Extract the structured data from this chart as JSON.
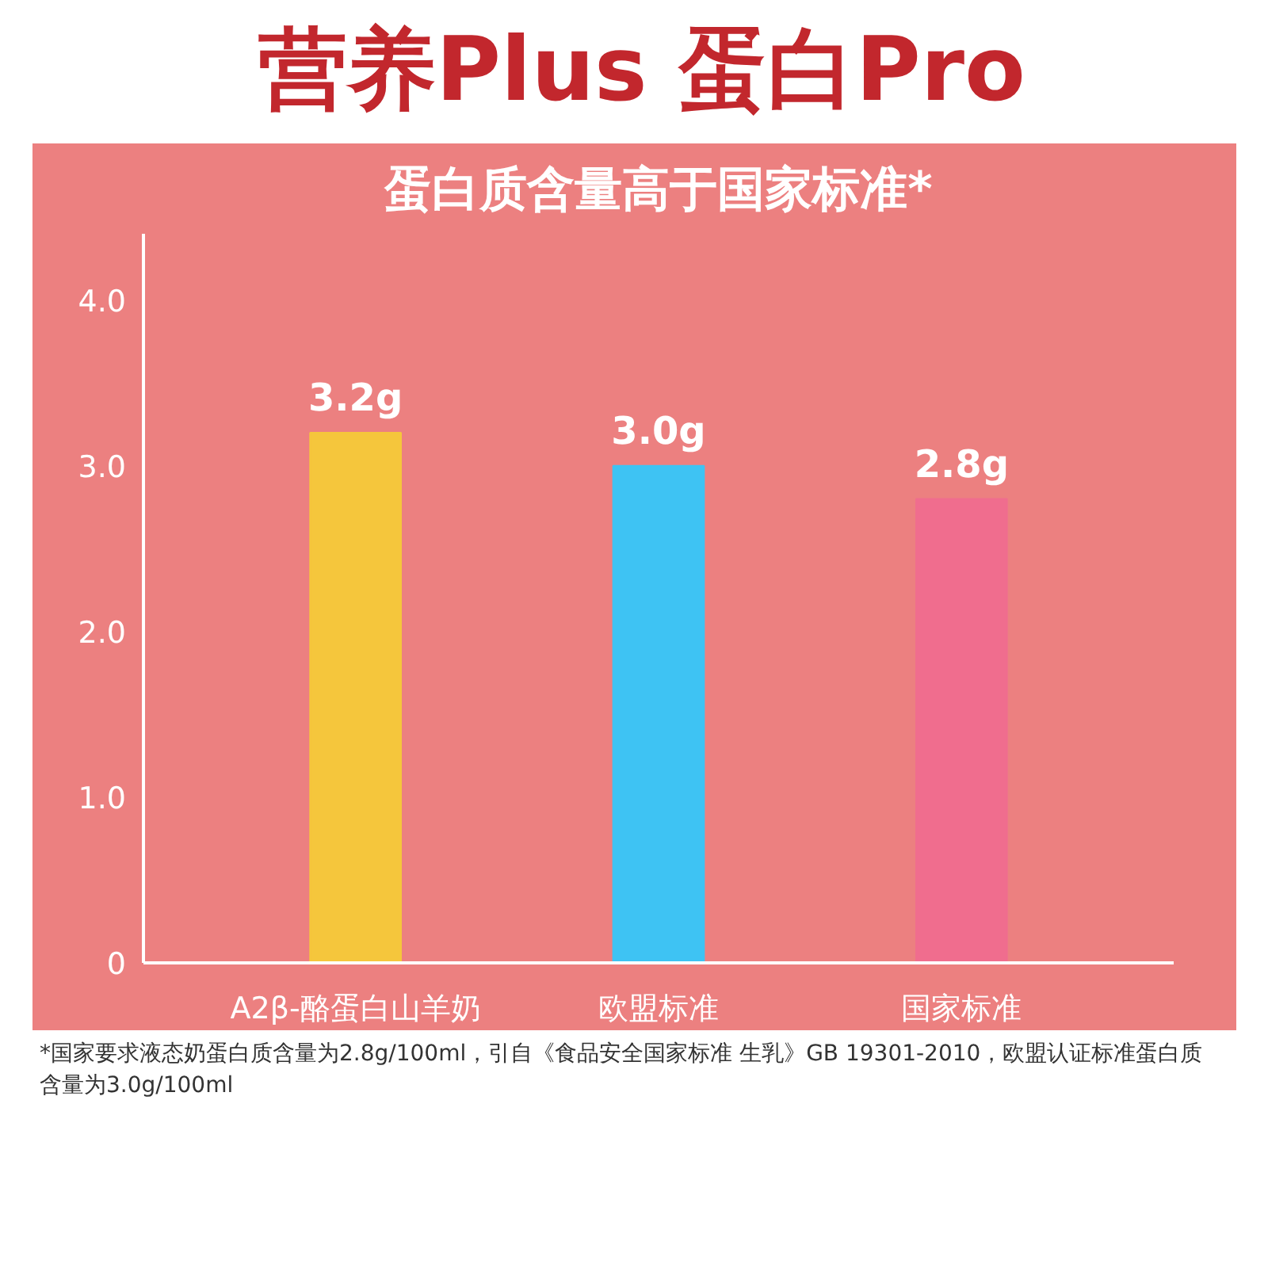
{
  "chart_data": {
    "type": "bar",
    "title": "营养Plus 蛋白Pro",
    "subtitle": "蛋白质含量高于国家标准*",
    "categories": [
      "A2β-酪蛋白山羊奶",
      "欧盟标准",
      "国家标准"
    ],
    "values": [
      3.2,
      3.0,
      2.8
    ],
    "colors": [
      "#f5c63c",
      "#3ec3f3",
      "#f06d8e"
    ],
    "value_labels": [
      "3.2g",
      "3.0g",
      "2.8g"
    ],
    "ylim": [
      0,
      4.4
    ],
    "yticks": [
      0,
      {
        "value": 1,
        "label": "1.0"
      },
      {
        "value": 2,
        "label": "2.0"
      },
      {
        "value": 3,
        "label": "3.0"
      },
      {
        "value": 4,
        "label": "4.0"
      }
    ],
    "grid": false,
    "annotations": [
      "*国家要求液态奶蛋白质含量为2.8g/100ml，引自《食品安全国家标准 生乳》GB 19301-2010，欧盟认证标准蛋白质含量为3.0g/100ml"
    ]
  }
}
